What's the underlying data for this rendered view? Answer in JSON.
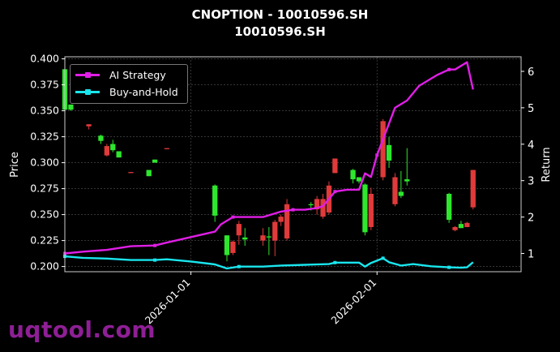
{
  "title": "CNOPTION - 10010596.SH",
  "subtitle": "10010596.SH",
  "watermark": "uqtool.com",
  "colors": {
    "background": "#000000",
    "up": "#2ee62e",
    "down": "#e03a3a",
    "strategy": "#e01ee6",
    "benchmark": "#19e6ee",
    "grid": "#555555",
    "watermark": "#8e1f95"
  },
  "legend": {
    "placement": "top-left",
    "items": [
      "AI Strategy",
      "Buy-and-Hold"
    ]
  },
  "chart_data": {
    "type": "candlestick+line",
    "grid": true,
    "xlim": [
      "2025-12-11",
      "2026-02-25"
    ],
    "x_ticks": [
      "2026-01-01",
      "2026-02-01"
    ],
    "ylabel": "Price",
    "ylim": [
      0.195,
      0.402
    ],
    "y_ticks": [
      "0.200",
      "0.225",
      "0.250",
      "0.275",
      "0.300",
      "0.325",
      "0.350",
      "0.375",
      "0.400"
    ],
    "y2label": "Return",
    "y2lim": [
      0.5,
      6.4
    ],
    "y2_ticks": [
      "1",
      "2",
      "3",
      "4",
      "5",
      "6"
    ],
    "candles": [
      {
        "date": "2025-12-11",
        "open": 0.351,
        "close": 0.39,
        "high": 0.391,
        "low": 0.351
      },
      {
        "date": "2025-12-12",
        "open": 0.351,
        "close": 0.356,
        "high": 0.356,
        "low": 0.35
      },
      {
        "date": "2025-12-15",
        "open": 0.337,
        "close": 0.335,
        "high": 0.337,
        "low": 0.332
      },
      {
        "date": "2025-12-17",
        "open": 0.321,
        "close": 0.326,
        "high": 0.327,
        "low": 0.318
      },
      {
        "date": "2025-12-18",
        "open": 0.316,
        "close": 0.307,
        "high": 0.318,
        "low": 0.306
      },
      {
        "date": "2025-12-19",
        "open": 0.312,
        "close": 0.318,
        "high": 0.322,
        "low": 0.31
      },
      {
        "date": "2025-12-20",
        "open": 0.305,
        "close": 0.311,
        "high": 0.311,
        "low": 0.305
      },
      {
        "date": "2025-12-22",
        "open": 0.291,
        "close": 0.29,
        "high": 0.291,
        "low": 0.29
      },
      {
        "date": "2025-12-25",
        "open": 0.287,
        "close": 0.293,
        "high": 0.293,
        "low": 0.287
      },
      {
        "date": "2025-12-26",
        "open": 0.3,
        "close": 0.303,
        "high": 0.303,
        "low": 0.3
      },
      {
        "date": "2025-12-28",
        "open": 0.314,
        "close": 0.313,
        "high": 0.314,
        "low": 0.313
      },
      {
        "date": "2026-01-05",
        "open": 0.249,
        "close": 0.278,
        "high": 0.279,
        "low": 0.243
      },
      {
        "date": "2026-01-07",
        "open": 0.211,
        "close": 0.23,
        "high": 0.23,
        "low": 0.205
      },
      {
        "date": "2026-01-08",
        "open": 0.224,
        "close": 0.213,
        "high": 0.225,
        "low": 0.211
      },
      {
        "date": "2026-01-09",
        "open": 0.241,
        "close": 0.23,
        "high": 0.244,
        "low": 0.221
      },
      {
        "date": "2026-01-10",
        "open": 0.226,
        "close": 0.228,
        "high": 0.237,
        "low": 0.22
      },
      {
        "date": "2026-01-13",
        "open": 0.23,
        "close": 0.225,
        "high": 0.237,
        "low": 0.22
      },
      {
        "date": "2026-01-14",
        "open": 0.228,
        "close": 0.229,
        "high": 0.238,
        "low": 0.211
      },
      {
        "date": "2026-01-15",
        "open": 0.243,
        "close": 0.225,
        "high": 0.245,
        "low": 0.21
      },
      {
        "date": "2026-01-16",
        "open": 0.248,
        "close": 0.243,
        "high": 0.25,
        "low": 0.239
      },
      {
        "date": "2026-01-17",
        "open": 0.26,
        "close": 0.227,
        "high": 0.265,
        "low": 0.225
      },
      {
        "date": "2026-01-21",
        "open": 0.259,
        "close": 0.26,
        "high": 0.262,
        "low": 0.254
      },
      {
        "date": "2026-01-22",
        "open": 0.265,
        "close": 0.255,
        "high": 0.268,
        "low": 0.25
      },
      {
        "date": "2026-01-23",
        "open": 0.265,
        "close": 0.248,
        "high": 0.27,
        "low": 0.246
      },
      {
        "date": "2026-01-24",
        "open": 0.278,
        "close": 0.252,
        "high": 0.282,
        "low": 0.25
      },
      {
        "date": "2026-01-25",
        "open": 0.304,
        "close": 0.29,
        "high": 0.304,
        "low": 0.29
      },
      {
        "date": "2026-01-28",
        "open": 0.284,
        "close": 0.293,
        "high": 0.294,
        "low": 0.28
      },
      {
        "date": "2026-01-29",
        "open": 0.282,
        "close": 0.286,
        "high": 0.286,
        "low": 0.28
      },
      {
        "date": "2026-01-30",
        "open": 0.233,
        "close": 0.279,
        "high": 0.28,
        "low": 0.23
      },
      {
        "date": "2026-01-31",
        "open": 0.27,
        "close": 0.238,
        "high": 0.276,
        "low": 0.235
      },
      {
        "date": "2026-02-02",
        "open": 0.34,
        "close": 0.286,
        "high": 0.342,
        "low": 0.283
      },
      {
        "date": "2026-02-03",
        "open": 0.302,
        "close": 0.317,
        "high": 0.325,
        "low": 0.295
      },
      {
        "date": "2026-02-04",
        "open": 0.286,
        "close": 0.26,
        "high": 0.29,
        "low": 0.258
      },
      {
        "date": "2026-02-05",
        "open": 0.268,
        "close": 0.272,
        "high": 0.292,
        "low": 0.266
      },
      {
        "date": "2026-02-06",
        "open": 0.282,
        "close": 0.284,
        "high": 0.314,
        "low": 0.278
      },
      {
        "date": "2026-02-13",
        "open": 0.245,
        "close": 0.27,
        "high": 0.271,
        "low": 0.242
      },
      {
        "date": "2026-02-14",
        "open": 0.238,
        "close": 0.235,
        "high": 0.239,
        "low": 0.234
      },
      {
        "date": "2026-02-15",
        "open": 0.237,
        "close": 0.241,
        "high": 0.244,
        "low": 0.237
      },
      {
        "date": "2026-02-16",
        "open": 0.242,
        "close": 0.238,
        "high": 0.243,
        "low": 0.238
      },
      {
        "date": "2026-02-17",
        "open": 0.293,
        "close": 0.257,
        "high": 0.293,
        "low": 0.255
      }
    ],
    "series": [
      {
        "name": "AI Strategy",
        "dates": [
          "2025-12-11",
          "2025-12-14",
          "2025-12-18",
          "2025-12-20",
          "2025-12-22",
          "2025-12-26",
          "2025-12-28",
          "2026-01-01",
          "2026-01-05",
          "2026-01-06",
          "2026-01-08",
          "2026-01-10",
          "2026-01-13",
          "2026-01-15",
          "2026-01-16",
          "2026-01-18",
          "2026-01-20",
          "2026-01-22",
          "2026-01-23",
          "2026-01-24",
          "2026-01-25",
          "2026-01-27",
          "2026-01-29",
          "2026-01-30",
          "2026-01-31",
          "2026-02-01",
          "2026-02-04",
          "2026-02-06",
          "2026-02-08",
          "2026-02-11",
          "2026-02-13",
          "2026-02-14",
          "2026-02-15",
          "2026-02-16",
          "2026-02-17"
        ],
        "values": [
          1.0,
          1.05,
          1.1,
          1.15,
          1.2,
          1.22,
          1.3,
          1.45,
          1.6,
          1.8,
          2.0,
          2.0,
          2.0,
          2.1,
          2.15,
          2.2,
          2.2,
          2.25,
          2.3,
          2.5,
          2.7,
          2.75,
          2.75,
          3.2,
          3.1,
          3.7,
          5.0,
          5.2,
          5.6,
          5.9,
          6.05,
          6.05,
          6.15,
          6.25,
          5.5
        ]
      },
      {
        "name": "Buy-and-Hold",
        "dates": [
          "2025-12-11",
          "2025-12-14",
          "2025-12-18",
          "2025-12-20",
          "2025-12-22",
          "2025-12-26",
          "2025-12-28",
          "2026-01-01",
          "2026-01-05",
          "2026-01-07",
          "2026-01-09",
          "2026-01-13",
          "2026-01-16",
          "2026-01-20",
          "2026-01-24",
          "2026-01-25",
          "2026-01-27",
          "2026-01-29",
          "2026-01-30",
          "2026-01-31",
          "2026-02-02",
          "2026-02-03",
          "2026-02-05",
          "2026-02-07",
          "2026-02-10",
          "2026-02-13",
          "2026-02-15",
          "2026-02-16",
          "2026-02-17"
        ],
        "values": [
          0.92,
          0.88,
          0.86,
          0.84,
          0.82,
          0.82,
          0.84,
          0.78,
          0.7,
          0.59,
          0.64,
          0.64,
          0.67,
          0.69,
          0.71,
          0.75,
          0.75,
          0.75,
          0.64,
          0.74,
          0.87,
          0.76,
          0.67,
          0.71,
          0.65,
          0.62,
          0.61,
          0.62,
          0.76
        ]
      }
    ]
  }
}
